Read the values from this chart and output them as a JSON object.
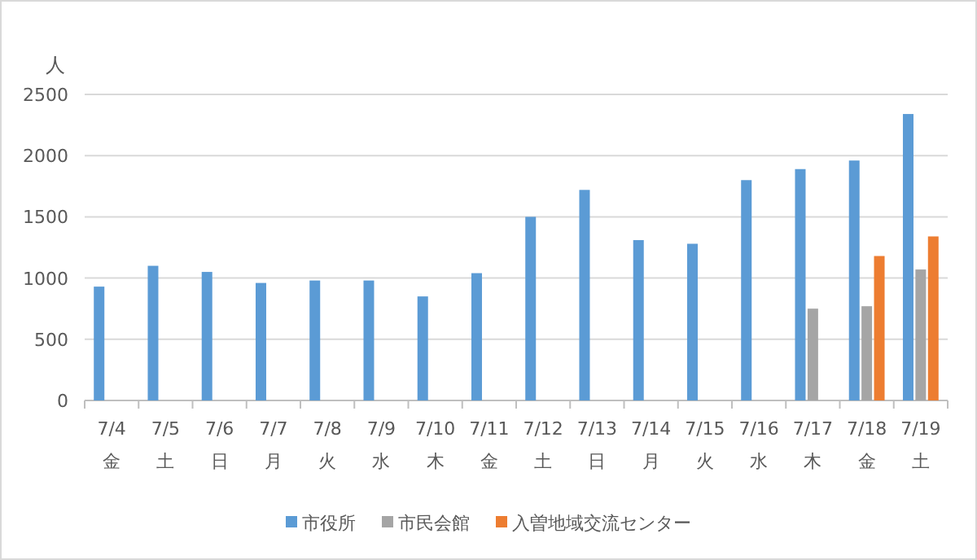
{
  "chart_data": {
    "type": "bar",
    "ylabel": "人",
    "categories": [
      "7/4 金",
      "7/5 土",
      "7/6 日",
      "7/7 月",
      "7/8 火",
      "7/9 水",
      "7/10 木",
      "7/11 金",
      "7/12 土",
      "7/13 日",
      "7/14 月",
      "7/15 火",
      "7/16 水",
      "7/17 木",
      "7/18 金",
      "7/19 土"
    ],
    "series": [
      {
        "name": "市役所",
        "color": "#5b9bd5",
        "values": [
          930,
          1100,
          1050,
          960,
          980,
          980,
          850,
          1040,
          1500,
          1720,
          1310,
          1280,
          1800,
          1890,
          1960,
          2340
        ]
      },
      {
        "name": "市民会館",
        "color": "#a5a5a5",
        "values": [
          null,
          null,
          null,
          null,
          null,
          null,
          null,
          null,
          null,
          null,
          null,
          null,
          null,
          750,
          770,
          1070
        ]
      },
      {
        "name": "入曽地域交流センター",
        "color": "#ed7d31",
        "values": [
          null,
          null,
          null,
          null,
          null,
          null,
          null,
          null,
          null,
          null,
          null,
          null,
          null,
          null,
          1180,
          1340
        ]
      }
    ],
    "ylim": [
      0,
      2500
    ],
    "yticks": [
      0,
      500,
      1000,
      1500,
      2000,
      2500
    ],
    "grid": "y",
    "legend": "bottom"
  }
}
